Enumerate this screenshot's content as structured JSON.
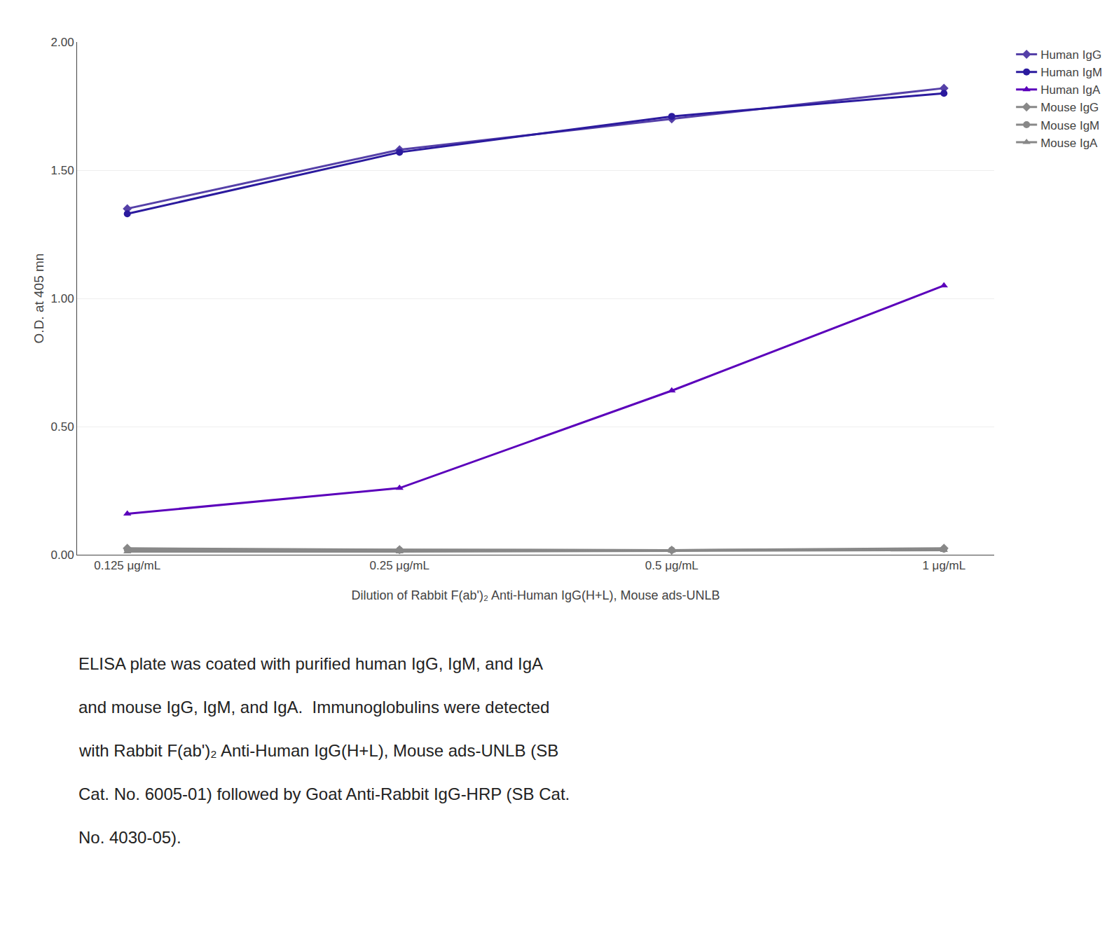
{
  "chart_data": {
    "type": "line",
    "categories": [
      "0.125 μg/mL",
      "0.25 μg/mL",
      "0.5 μg/mL",
      "1 μg/mL"
    ],
    "series": [
      {
        "name": "Human IgG",
        "color": "#5540A8",
        "marker": "diamond",
        "values": [
          1.35,
          1.58,
          1.7,
          1.82
        ]
      },
      {
        "name": "Human IgM",
        "color": "#2B1A9E",
        "marker": "circle",
        "values": [
          1.33,
          1.57,
          1.71,
          1.8
        ]
      },
      {
        "name": "Human IgA",
        "color": "#5B00BB",
        "marker": "triangle-up",
        "values": [
          0.16,
          0.26,
          0.64,
          1.05
        ]
      },
      {
        "name": "Mouse IgG",
        "color": "#888888",
        "marker": "diamond",
        "values": [
          0.025,
          0.02,
          0.018,
          0.025
        ]
      },
      {
        "name": "Mouse IgM",
        "color": "#888888",
        "marker": "circle",
        "values": [
          0.02,
          0.018,
          0.018,
          0.022
        ]
      },
      {
        "name": "Mouse IgA",
        "color": "#888888",
        "marker": "triangle-up",
        "values": [
          0.012,
          0.012,
          0.015,
          0.018
        ]
      }
    ],
    "ylabel": "O.D. at 405 mn",
    "xlabel": "Dilution of Rabbit F(ab')₂ Anti-Human IgG(H+L), Mouse ads-UNLB",
    "ylim": [
      0.0,
      2.0
    ],
    "yticks": [
      {
        "value": 0.0,
        "label": "0.00"
      },
      {
        "value": 0.5,
        "label": "0.50"
      },
      {
        "value": 1.0,
        "label": "1.00"
      },
      {
        "value": 1.5,
        "label": "1.50"
      },
      {
        "value": 2.0,
        "label": "2.00"
      }
    ],
    "grid": "y",
    "legend": "right",
    "annotations": [
      "ELISA plate was coated with purified human IgG, IgM, and IgA",
      "and mouse IgG, IgM, and IgA.  Immunoglobulins were detected",
      "with Rabbit F(ab')₂ Anti-Human IgG(H+L), Mouse ads-UNLB (SB",
      "Cat. No. 6005-01) followed by Goat Anti-Rabbit IgG-HRP (SB Cat.",
      "No. 4030-05)."
    ]
  }
}
